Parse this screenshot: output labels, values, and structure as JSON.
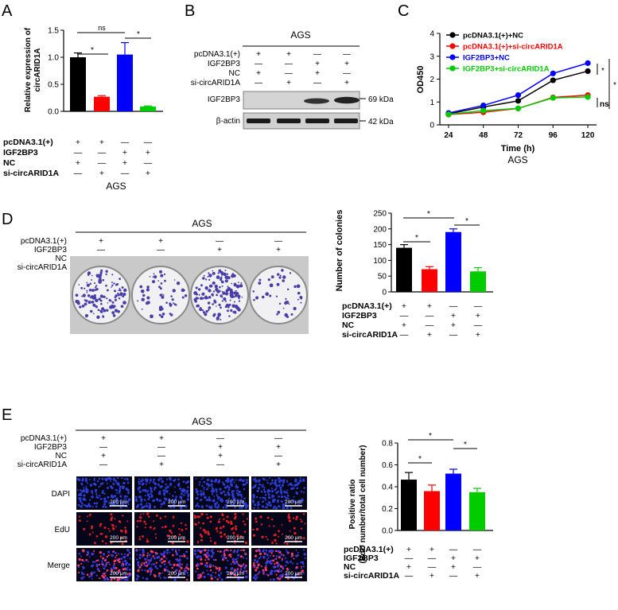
{
  "panel_letters": [
    "A",
    "B",
    "C",
    "D",
    "E"
  ],
  "common": {
    "cell_line": "AGS",
    "row_labels": [
      "pcDNA3.1(+)",
      "IGF2BP3",
      "NC",
      "si-circARID1A"
    ],
    "row_signs": [
      [
        "+",
        "+",
        "—",
        "—"
      ],
      [
        "—",
        "—",
        "+",
        "+"
      ],
      [
        "+",
        "—",
        "+",
        "—"
      ],
      [
        "—",
        "+",
        "—",
        "+"
      ]
    ],
    "colors": {
      "black": "#000000",
      "red": "#ff0000",
      "blue": "#0000ff",
      "green": "#00cc00"
    }
  },
  "panel_a": {
    "ylabel_line1": "Relative expression of",
    "ylabel_line2": "circARID1A",
    "ticks": [
      "0.0",
      "0.5",
      "1.0",
      "1.5"
    ],
    "sig": [
      "*",
      "*",
      "ns"
    ],
    "xlabel": "AGS"
  },
  "panel_b": {
    "title": "AGS",
    "bands": [
      "IGF2BP3",
      "β-actin"
    ],
    "sizes": [
      "69 kDa",
      "42 kDa"
    ]
  },
  "panel_c": {
    "ylabel": "OD450",
    "xlabel": "Time (h)",
    "sublabel": "AGS",
    "yticks": [
      "0",
      "1",
      "2",
      "3",
      "4"
    ],
    "xticks": [
      "24",
      "48",
      "72",
      "96",
      "120"
    ],
    "legend": [
      "pcDNA3.1(+)+NC",
      "pcDNA3.1(+)+si-circARID1A",
      "IGF2BP3+NC",
      "IGF2BP3+si-circARID1A"
    ],
    "sig": [
      "*",
      "*",
      "ns"
    ]
  },
  "panel_d": {
    "title": "AGS",
    "ylabel": "Number of colonies",
    "ticks": [
      "0",
      "50",
      "100",
      "150",
      "200",
      "250"
    ],
    "sig": [
      "*",
      "*",
      "*"
    ]
  },
  "panel_e": {
    "title": "AGS",
    "ylabel_line1": "Positive ratio",
    "ylabel_line2": "(EdU number/total cell number)",
    "ticks": [
      "0.0",
      "0.2",
      "0.4",
      "0.6",
      "0.8"
    ],
    "stains": [
      "DAPI",
      "EdU",
      "Merge"
    ],
    "scale": "200 μm",
    "sig": [
      "*",
      "*",
      "*"
    ]
  },
  "chart_data": [
    {
      "type": "bar",
      "id": "A",
      "categories": [
        "1",
        "2",
        "3",
        "4"
      ],
      "values": [
        1.0,
        0.27,
        1.05,
        0.09
      ],
      "errors": [
        0.08,
        0.02,
        0.22,
        0.01
      ],
      "ylabel": "Relative expression of circARID1A",
      "ylim": [
        0,
        1.5
      ]
    },
    {
      "type": "line",
      "id": "C",
      "x": [
        24,
        48,
        72,
        96,
        120
      ],
      "xlabel": "Time (h)",
      "ylabel": "OD450",
      "ylim": [
        0,
        4
      ],
      "series": [
        {
          "name": "pcDNA3.1(+)+NC",
          "values": [
            0.48,
            0.78,
            1.05,
            1.95,
            2.35
          ]
        },
        {
          "name": "pcDNA3.1(+)+si-circARID1A",
          "values": [
            0.45,
            0.55,
            0.72,
            1.2,
            1.3
          ]
        },
        {
          "name": "IGF2BP3+NC",
          "values": [
            0.52,
            0.85,
            1.3,
            2.25,
            2.7
          ]
        },
        {
          "name": "IGF2BP3+si-circARID1A",
          "values": [
            0.46,
            0.62,
            0.72,
            1.18,
            1.22
          ]
        }
      ]
    },
    {
      "type": "bar",
      "id": "D",
      "categories": [
        "1",
        "2",
        "3",
        "4"
      ],
      "values": [
        140,
        72,
        190,
        65
      ],
      "errors": [
        10,
        8,
        10,
        12
      ],
      "ylabel": "Number of colonies",
      "ylim": [
        0,
        250
      ]
    },
    {
      "type": "bar",
      "id": "E",
      "categories": [
        "1",
        "2",
        "3",
        "4"
      ],
      "values": [
        0.465,
        0.36,
        0.52,
        0.35
      ],
      "errors": [
        0.065,
        0.055,
        0.04,
        0.035
      ],
      "ylabel": "Positive ratio (EdU number/total cell number)",
      "ylim": [
        0,
        0.8
      ]
    }
  ]
}
